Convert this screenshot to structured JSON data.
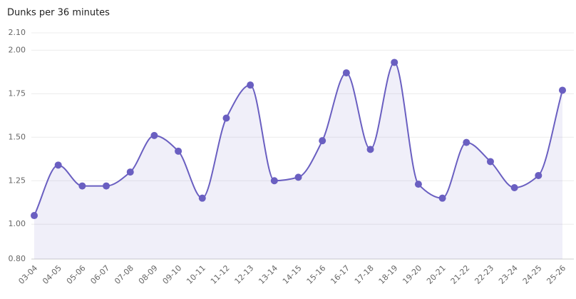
{
  "chart_data": {
    "type": "area",
    "title": "Dunks per 36 minutes",
    "categories": [
      "03-04",
      "04-05",
      "05-06",
      "06-07",
      "07-08",
      "08-09",
      "09-10",
      "10-11",
      "11-12",
      "12-13",
      "13-14",
      "14-15",
      "15-16",
      "16-17",
      "17-18",
      "18-19",
      "19-20",
      "20-21",
      "21-22",
      "22-23",
      "23-24",
      "24-25",
      "25-26"
    ],
    "values": [
      1.05,
      1.34,
      1.22,
      1.22,
      1.3,
      1.51,
      1.42,
      1.15,
      1.61,
      1.8,
      1.25,
      1.27,
      1.48,
      1.87,
      1.43,
      1.93,
      1.23,
      1.15,
      1.47,
      1.36,
      1.21,
      1.28,
      1.77
    ],
    "color": "#6a5fc1",
    "ylim": [
      0.8,
      2.1
    ],
    "yticks": [
      {
        "value": 0.8,
        "label": "0.80"
      },
      {
        "value": 1.0,
        "label": "1.00"
      },
      {
        "value": 1.25,
        "label": "1.25"
      },
      {
        "value": 1.5,
        "label": "1.50"
      },
      {
        "value": 1.75,
        "label": "1.75"
      },
      {
        "value": 2.0,
        "label": "2.00"
      },
      {
        "value": 2.1,
        "label": "2.10"
      }
    ],
    "grid": true
  }
}
